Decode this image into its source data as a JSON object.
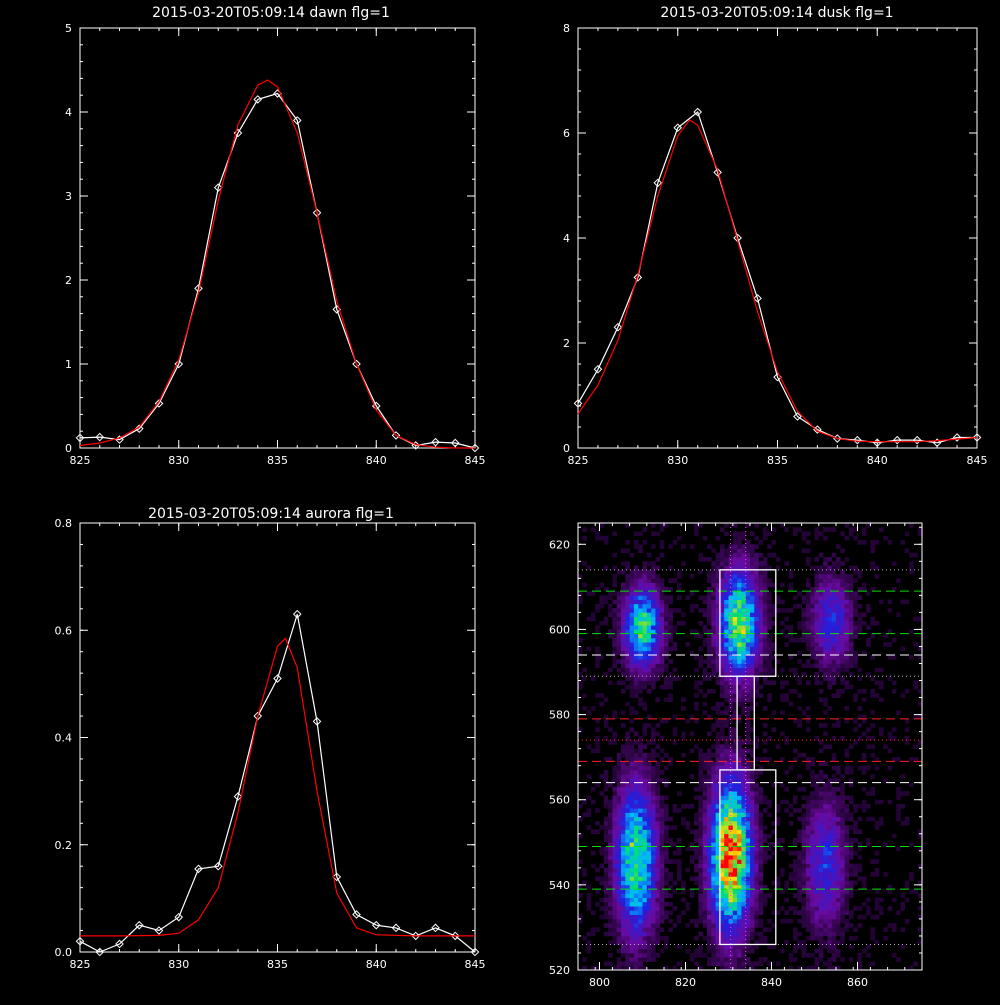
{
  "chart_data": [
    {
      "type": "line",
      "title": "2015-03-20T05:09:14 dawn flg=1",
      "xlim": [
        825,
        845
      ],
      "ylim": [
        0,
        5
      ],
      "xticks": [
        "825",
        "830",
        "835",
        "840",
        "845"
      ],
      "yticks": [
        "0",
        "1",
        "2",
        "3",
        "4",
        "5"
      ],
      "xtick_values": [
        825,
        830,
        835,
        840,
        845
      ],
      "ytick_values": [
        0,
        1,
        2,
        3,
        4,
        5
      ],
      "series": [
        {
          "color": "#ffffff",
          "marker": "diamond",
          "x": [
            825,
            826,
            827,
            828,
            829,
            830,
            831,
            832,
            833,
            834,
            835,
            836,
            837,
            838,
            839,
            840,
            841,
            842,
            843,
            844,
            845
          ],
          "y": [
            0.12,
            0.13,
            0.1,
            0.23,
            0.53,
            1.0,
            1.9,
            3.1,
            3.75,
            4.15,
            4.22,
            3.9,
            2.8,
            1.65,
            1.0,
            0.5,
            0.15,
            0.03,
            0.07,
            0.06,
            0.0
          ]
        },
        {
          "color": "#ff0000",
          "x": [
            825,
            826,
            827,
            828,
            829,
            830,
            831,
            832,
            833,
            834,
            834.5,
            835,
            836,
            837,
            838,
            839,
            840,
            841,
            842,
            843,
            844,
            845
          ],
          "y": [
            0.03,
            0.06,
            0.12,
            0.25,
            0.55,
            1.05,
            1.85,
            2.95,
            3.85,
            4.32,
            4.38,
            4.3,
            3.75,
            2.8,
            1.75,
            1.0,
            0.45,
            0.15,
            0.04,
            0.01,
            0.0,
            0.0
          ]
        }
      ]
    },
    {
      "type": "line",
      "title": "2015-03-20T05:09:14 dusk flg=1",
      "xlim": [
        825,
        845
      ],
      "ylim": [
        0,
        8
      ],
      "xticks": [
        "825",
        "830",
        "835",
        "840",
        "845"
      ],
      "yticks": [
        "0",
        "2",
        "4",
        "6",
        "8"
      ],
      "xtick_values": [
        825,
        830,
        835,
        840,
        845
      ],
      "ytick_values": [
        0,
        2,
        4,
        6,
        8
      ],
      "series": [
        {
          "color": "#ffffff",
          "marker": "diamond",
          "x": [
            825,
            826,
            827,
            828,
            829,
            830,
            831,
            832,
            833,
            834,
            835,
            836,
            837,
            838,
            839,
            840,
            841,
            842,
            843,
            844,
            845
          ],
          "y": [
            0.85,
            1.5,
            2.3,
            3.25,
            5.05,
            6.1,
            6.4,
            5.25,
            4.0,
            2.85,
            1.35,
            0.6,
            0.35,
            0.18,
            0.15,
            0.1,
            0.15,
            0.15,
            0.1,
            0.2,
            0.2
          ]
        },
        {
          "color": "#ff0000",
          "x": [
            825,
            826,
            827,
            828,
            829,
            830,
            830.6,
            831,
            832,
            833,
            834,
            835,
            836,
            837,
            838,
            839,
            840,
            841,
            842,
            843,
            844,
            845
          ],
          "y": [
            0.65,
            1.2,
            2.05,
            3.3,
            4.8,
            5.95,
            6.25,
            6.15,
            5.3,
            3.95,
            2.6,
            1.45,
            0.7,
            0.32,
            0.18,
            0.13,
            0.12,
            0.12,
            0.12,
            0.14,
            0.17,
            0.2
          ]
        }
      ]
    },
    {
      "type": "line",
      "title": "2015-03-20T05:09:14 aurora flg=1",
      "xlim": [
        825,
        845
      ],
      "ylim": [
        0,
        0.8
      ],
      "xticks": [
        "825",
        "830",
        "835",
        "840",
        "845"
      ],
      "yticks": [
        "0.0",
        "0.2",
        "0.4",
        "0.6",
        "0.8"
      ],
      "xtick_values": [
        825,
        830,
        835,
        840,
        845
      ],
      "ytick_values": [
        0,
        0.2,
        0.4,
        0.6,
        0.8
      ],
      "series": [
        {
          "color": "#ffffff",
          "marker": "diamond",
          "x": [
            825,
            826,
            827,
            828,
            829,
            830,
            831,
            832,
            833,
            834,
            835,
            836,
            837,
            838,
            839,
            840,
            841,
            842,
            843,
            844,
            845
          ],
          "y": [
            0.02,
            0.0,
            0.015,
            0.05,
            0.04,
            0.065,
            0.155,
            0.16,
            0.29,
            0.44,
            0.51,
            0.63,
            0.43,
            0.14,
            0.07,
            0.05,
            0.045,
            0.03,
            0.045,
            0.03,
            0.0
          ]
        },
        {
          "color": "#ff0000",
          "x": [
            825,
            827,
            829,
            830,
            831,
            832,
            833,
            834,
            835,
            835.4,
            836,
            837,
            838,
            839,
            840,
            842,
            845
          ],
          "y": [
            0.03,
            0.03,
            0.031,
            0.035,
            0.06,
            0.12,
            0.26,
            0.44,
            0.57,
            0.585,
            0.53,
            0.3,
            0.11,
            0.045,
            0.032,
            0.03,
            0.03
          ]
        }
      ]
    },
    {
      "type": "heatmap",
      "xlim": [
        795,
        875
      ],
      "ylim": [
        520,
        625
      ],
      "xticks": [
        "800",
        "820",
        "840",
        "860"
      ],
      "yticks": [
        "520",
        "540",
        "560",
        "580",
        "600",
        "620"
      ],
      "xtick_values": [
        800,
        820,
        840,
        860
      ],
      "ytick_values": [
        520,
        540,
        560,
        580,
        600,
        620
      ],
      "colormap": [
        "#000000",
        "#6a0aa0",
        "#1f20e0",
        "#00b8ff",
        "#00e070",
        "#ffe000",
        "#ff0000"
      ],
      "blobs": [
        {
          "x": 810.0,
          "y": 600.5,
          "sx": 2.8,
          "sy": 6.0,
          "amp": 0.62
        },
        {
          "x": 808.5,
          "y": 546.0,
          "sx": 3.0,
          "sy": 11.0,
          "amp": 0.66
        },
        {
          "x": 832.5,
          "y": 601.5,
          "sx": 3.0,
          "sy": 8.0,
          "amp": 0.7
        },
        {
          "x": 830.5,
          "y": 547.0,
          "sx": 3.0,
          "sy": 11.0,
          "amp": 1.0
        },
        {
          "x": 854.0,
          "y": 602.0,
          "sx": 3.0,
          "sy": 6.5,
          "amp": 0.3
        },
        {
          "x": 852.5,
          "y": 545.0,
          "sx": 3.0,
          "sy": 9.5,
          "amp": 0.3
        }
      ],
      "vlines": [
        {
          "x": 830.5,
          "color": "#ff40ff",
          "style": "dotted"
        },
        {
          "x": 834.0,
          "color": "#ff40ff",
          "style": "dotted"
        }
      ],
      "hlines": [
        {
          "y": 614,
          "color": "#b0b0b0",
          "style": "dotted"
        },
        {
          "y": 609,
          "color": "#00e000",
          "style": "dashed"
        },
        {
          "y": 599,
          "color": "#00e000",
          "style": "dashed"
        },
        {
          "y": 594,
          "color": "#ffffff",
          "style": "dashed"
        },
        {
          "y": 589,
          "color": "#b0b0b0",
          "style": "dotted"
        },
        {
          "y": 579,
          "color": "#ff2020",
          "style": "dashed"
        },
        {
          "y": 574,
          "color": "#ff2020",
          "style": "dotted"
        },
        {
          "y": 569,
          "color": "#ff2020",
          "style": "dashed"
        },
        {
          "y": 564,
          "color": "#ffffff",
          "style": "dashed"
        },
        {
          "y": 549,
          "color": "#00e000",
          "style": "dashed"
        },
        {
          "y": 539,
          "color": "#00e000",
          "style": "dashed"
        },
        {
          "y": 526,
          "color": "#b0b0b0",
          "style": "dotted"
        }
      ],
      "boxes": [
        {
          "x0": 828,
          "x1": 841,
          "y0": 589,
          "y1": 614
        },
        {
          "x0": 828,
          "x1": 841,
          "y0": 526,
          "y1": 567
        },
        {
          "x0": 832,
          "x1": 836,
          "y0": 567,
          "y1": 589
        }
      ]
    }
  ]
}
